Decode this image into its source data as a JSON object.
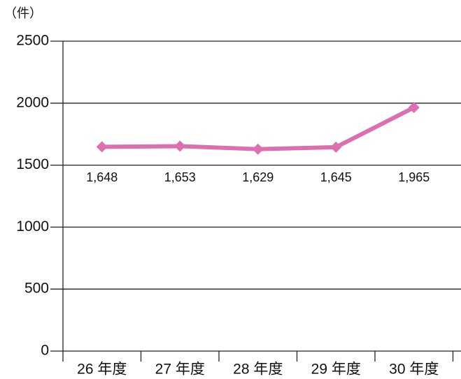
{
  "chart_data": {
    "type": "line",
    "y_axis_label": "（件）",
    "categories": [
      "26 年度",
      "27 年度",
      "28 年度",
      "29 年度",
      "30 年度"
    ],
    "values": [
      1648,
      1653,
      1629,
      1645,
      1965
    ],
    "value_labels": [
      "1,648",
      "1,653",
      "1,629",
      "1,645",
      "1,965"
    ],
    "color": "#db6fb0",
    "ylim": [
      0,
      2500
    ],
    "yticks": [
      0,
      500,
      1000,
      1500,
      2000,
      2500
    ],
    "grid": true
  }
}
